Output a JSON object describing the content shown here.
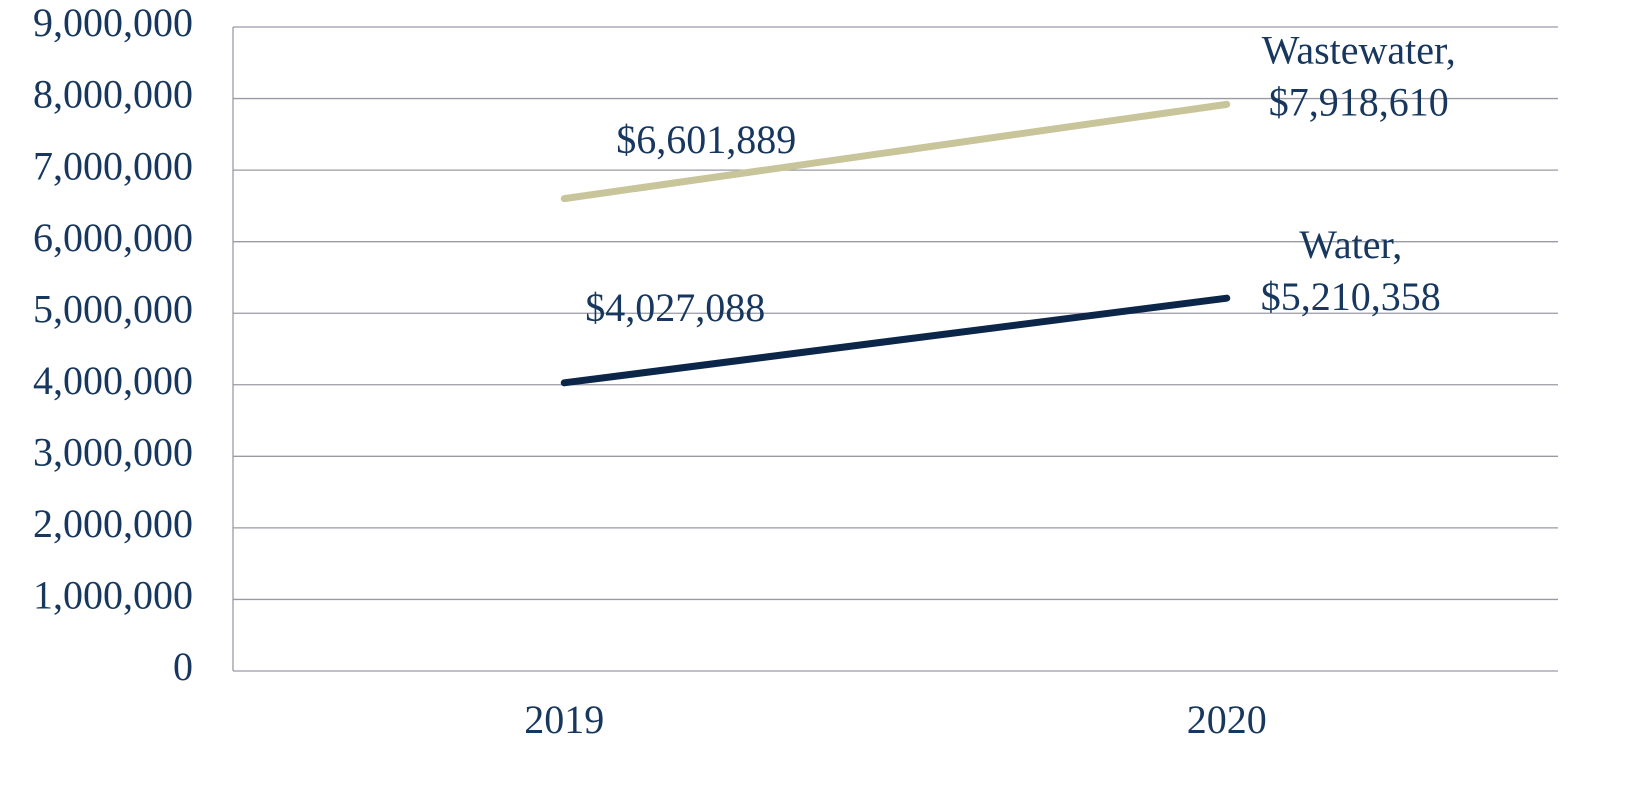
{
  "chart_data": {
    "type": "line",
    "categories": [
      "2019",
      "2020"
    ],
    "series": [
      {
        "color": "#c9c59b",
        "values": [
          6601889,
          7918610
        ],
        "value_labels": [
          "$6,601,889",
          "Wastewater,\n$7,918,610"
        ]
      },
      {
        "color": "#0b2649",
        "values": [
          4027088,
          5210358
        ],
        "value_labels": [
          "$4,027,088",
          "Water,\n$5,210,358"
        ]
      }
    ],
    "ylim": [
      0,
      9000000
    ],
    "yticks": [
      0,
      {
        "value": 1000000,
        "label": "1,000,000"
      },
      {
        "value": 2000000,
        "label": "2,000,000"
      },
      {
        "value": 3000000,
        "label": "3,000,000"
      },
      {
        "value": 4000000,
        "label": "4,000,000"
      },
      {
        "value": 5000000,
        "label": "5,000,000"
      },
      {
        "value": 6000000,
        "label": "6,000,000"
      },
      {
        "value": 7000000,
        "label": "7,000,000"
      },
      {
        "value": 8000000,
        "label": "8,000,000"
      },
      {
        "value": 9000000,
        "label": "9,000,000"
      }
    ],
    "grid": true
  }
}
